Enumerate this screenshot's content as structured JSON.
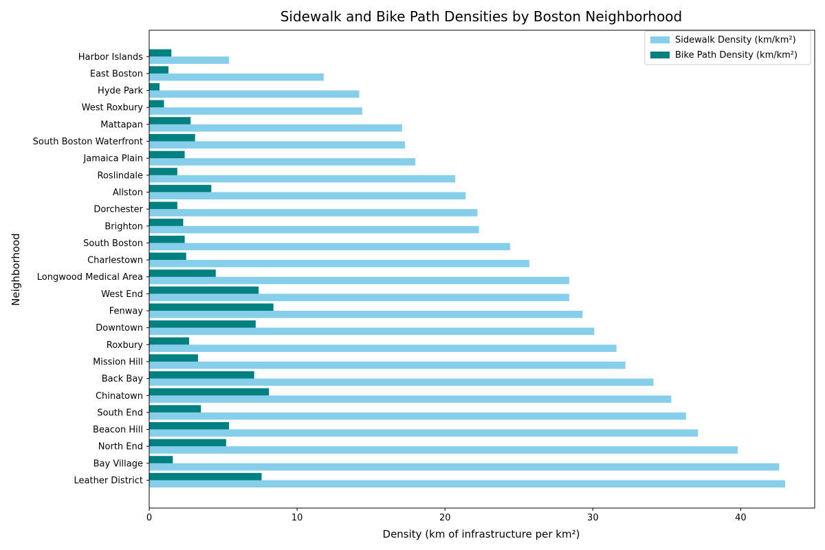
{
  "chart_data": {
    "type": "bar",
    "orientation": "horizontal",
    "title": "Sidewalk and Bike Path Densities by Boston Neighborhood",
    "xlabel": "Density (km of infrastructure per km²)",
    "ylabel": "Neighborhood",
    "xlim": [
      0,
      45
    ],
    "x_ticks": [
      0,
      10,
      20,
      30,
      40
    ],
    "grid": false,
    "legend_position": "top-right",
    "categories": [
      "Leather District",
      "Bay Village",
      "North End",
      "Beacon Hill",
      "South End",
      "Chinatown",
      "Back Bay",
      "Mission Hill",
      "Roxbury",
      "Downtown",
      "Fenway",
      "West End",
      "Longwood Medical Area",
      "Charlestown",
      "South Boston",
      "Brighton",
      "Dorchester",
      "Allston",
      "Roslindale",
      "Jamaica Plain",
      "South Boston Waterfront",
      "Mattapan",
      "West Roxbury",
      "Hyde Park",
      "East Boston",
      "Harbor Islands"
    ],
    "series": [
      {
        "name": "Sidewalk Density (km/km²)",
        "color": "#87ceeb",
        "values": [
          43.0,
          42.6,
          39.8,
          37.1,
          36.3,
          35.3,
          34.1,
          32.2,
          31.6,
          30.1,
          29.3,
          28.4,
          28.4,
          25.7,
          24.4,
          22.3,
          22.2,
          21.4,
          20.7,
          18.0,
          17.3,
          17.1,
          14.4,
          14.2,
          11.8,
          5.4
        ]
      },
      {
        "name": "Bike Path Density (km/km²)",
        "color": "#008080",
        "values": [
          7.6,
          1.6,
          5.2,
          5.4,
          3.5,
          8.1,
          7.1,
          3.3,
          2.7,
          7.2,
          8.4,
          7.4,
          4.5,
          2.5,
          2.4,
          2.3,
          1.9,
          4.2,
          1.9,
          2.4,
          3.1,
          2.8,
          1.0,
          0.7,
          1.3,
          1.5
        ]
      }
    ]
  }
}
